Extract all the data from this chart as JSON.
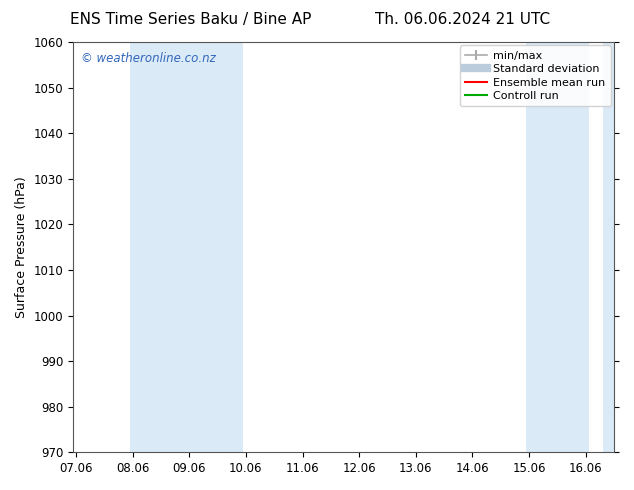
{
  "title_left": "ENS Time Series Baku / Bine AP",
  "title_right": "Th. 06.06.2024 21 UTC",
  "ylabel": "Surface Pressure (hPa)",
  "ylim": [
    970,
    1060
  ],
  "yticks": [
    970,
    980,
    990,
    1000,
    1010,
    1020,
    1030,
    1040,
    1050,
    1060
  ],
  "xtick_labels": [
    "07.06",
    "08.06",
    "09.06",
    "10.06",
    "11.06",
    "12.06",
    "13.06",
    "14.06",
    "15.06",
    "16.06"
  ],
  "x_positions": [
    0,
    1,
    2,
    3,
    4,
    5,
    6,
    7,
    8,
    9
  ],
  "xlim": [
    -0.05,
    9.5
  ],
  "shaded_bands": [
    {
      "x_start": 0.95,
      "x_end": 2.95,
      "color": "#daeaf7"
    },
    {
      "x_start": 7.95,
      "x_end": 9.05,
      "color": "#daeaf7"
    },
    {
      "x_start": 9.3,
      "x_end": 9.5,
      "color": "#daeaf7"
    }
  ],
  "watermark_text": "© weatheronline.co.nz",
  "watermark_color": "#3366bb",
  "background_color": "#ffffff",
  "plot_bg_color": "#ffffff",
  "title_fontsize": 11,
  "tick_fontsize": 8.5,
  "ylabel_fontsize": 9,
  "legend_fontsize": 8,
  "spine_color": "#555555",
  "spine_lw": 0.8,
  "minmax_color": "#aaaaaa",
  "stddev_color": "#bbccdd",
  "ensemble_color": "#ff0000",
  "control_color": "#00aa00"
}
